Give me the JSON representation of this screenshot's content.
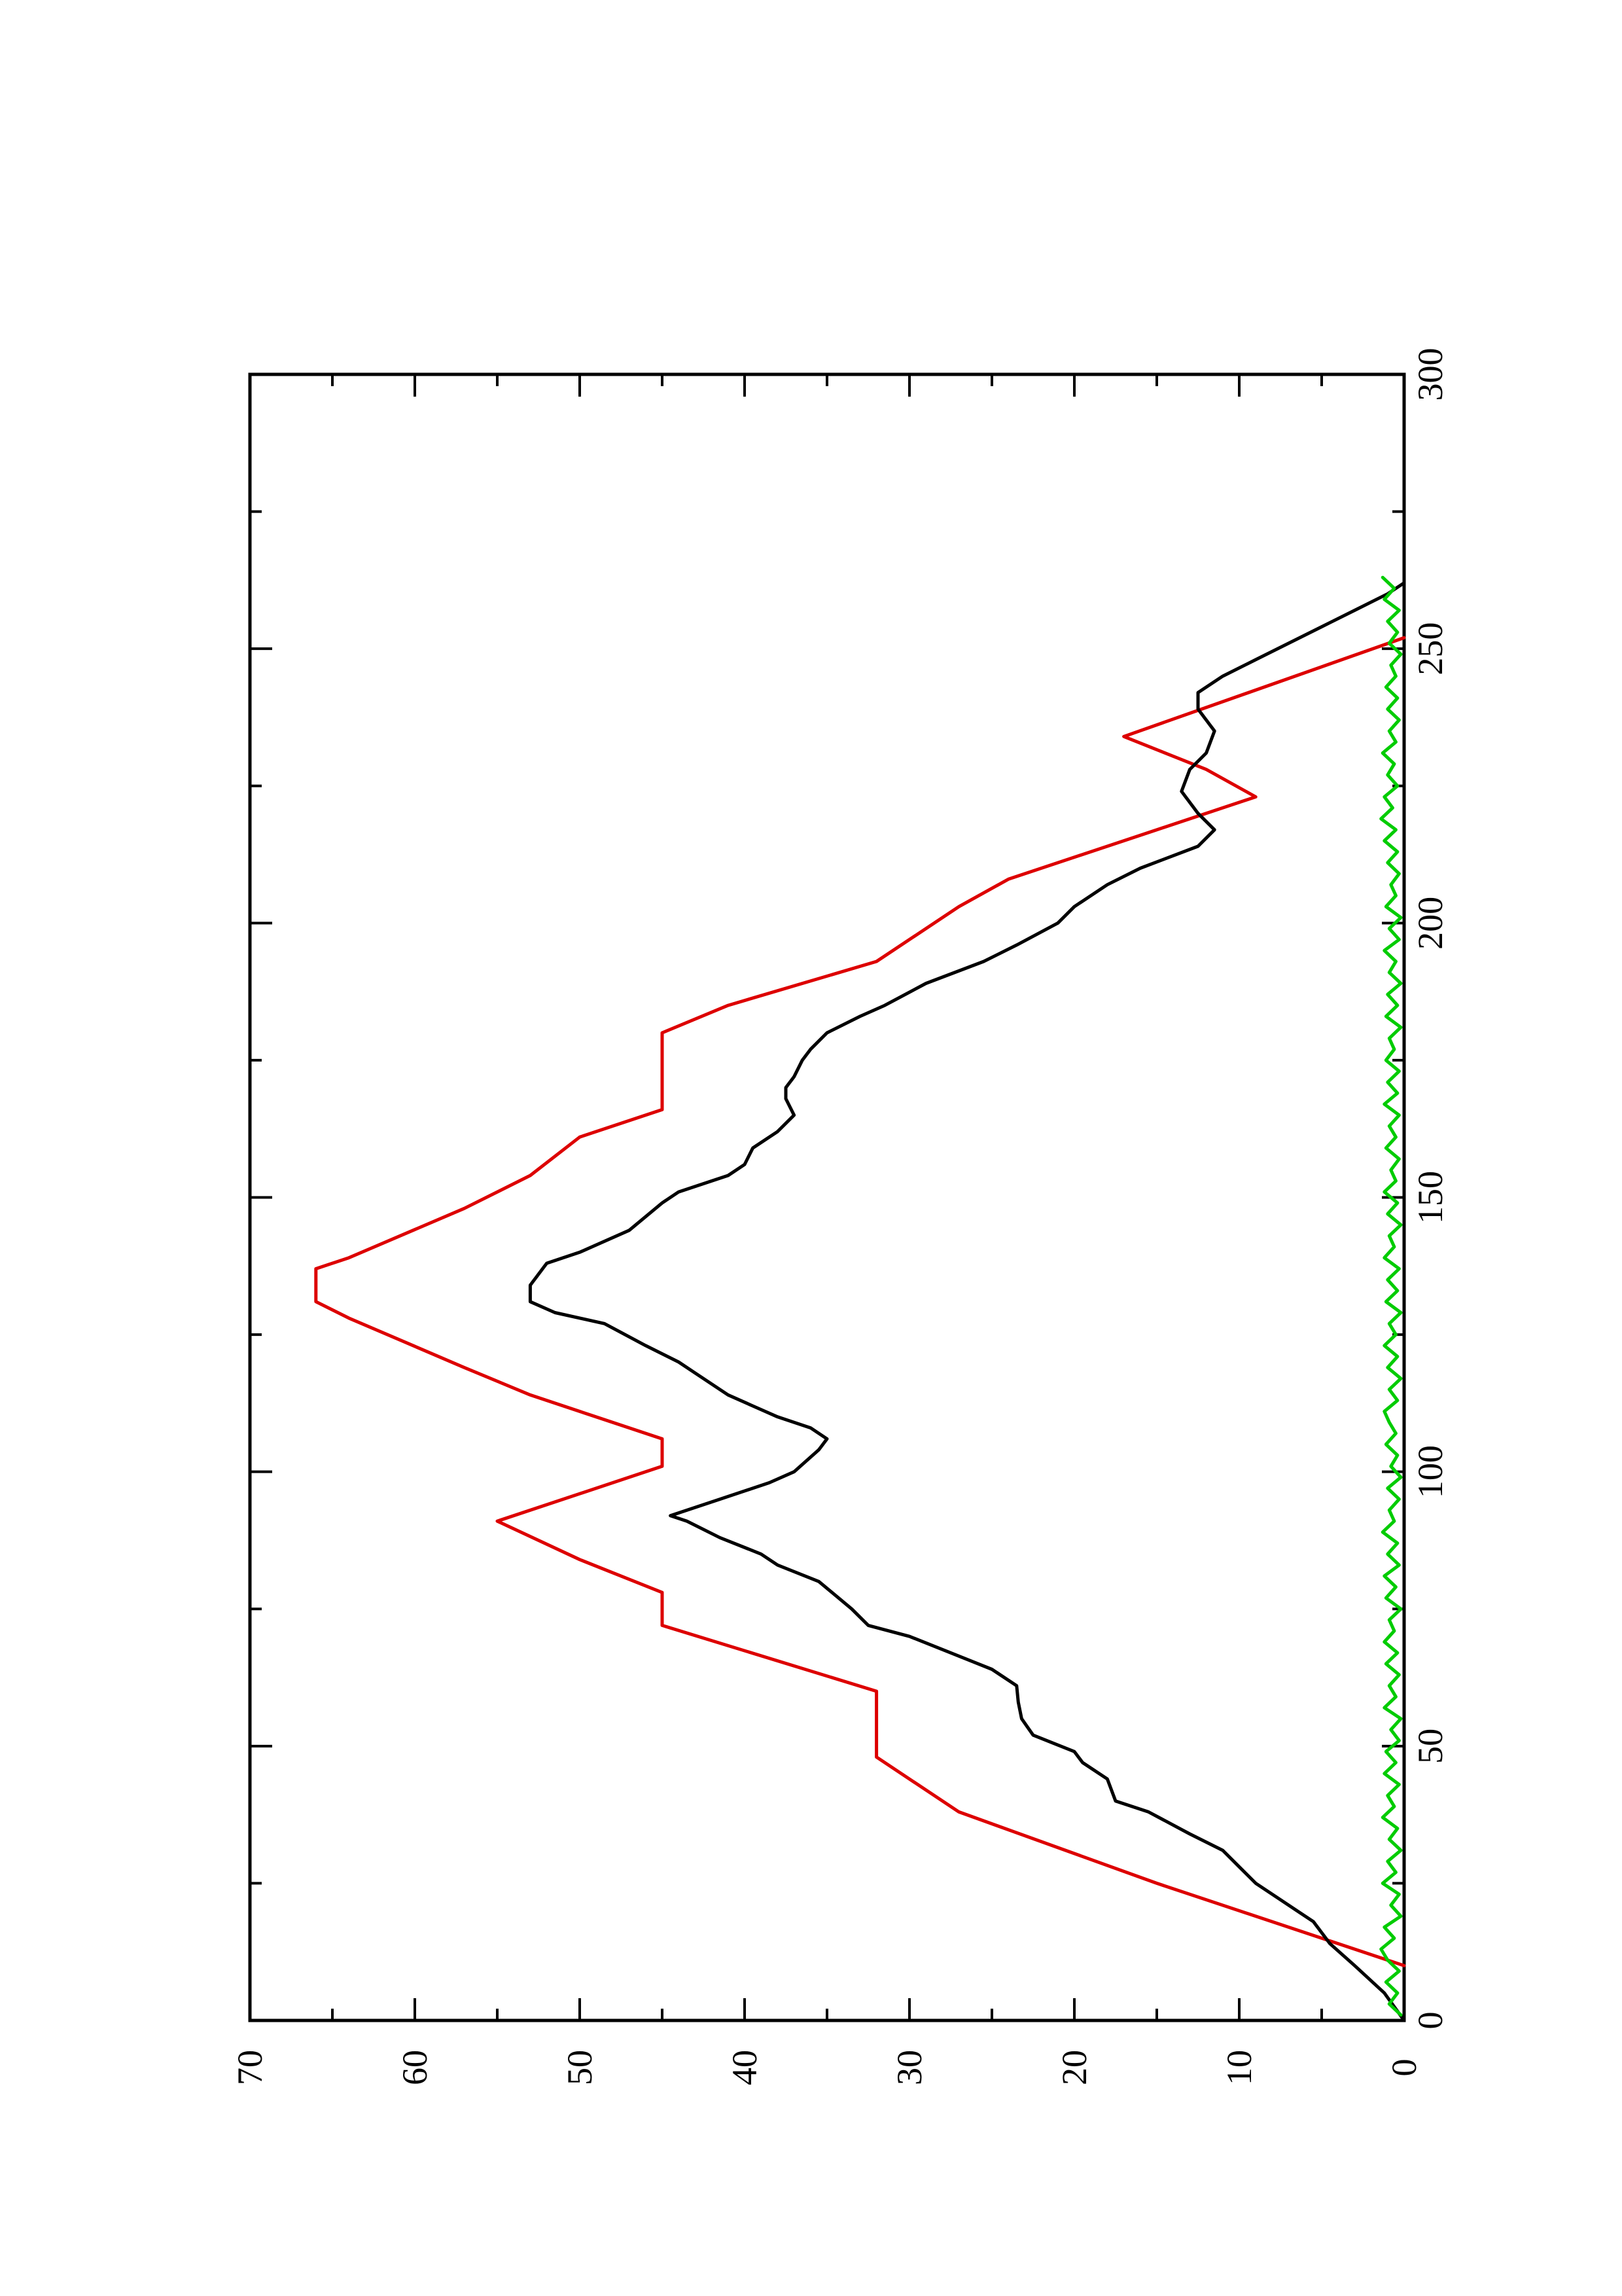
{
  "chart_data": {
    "type": "line",
    "orientation": "rotated-90-ccw",
    "title": "",
    "xlabel": "",
    "ylabel": "",
    "xlim": [
      0,
      300
    ],
    "ylim": [
      0,
      70
    ],
    "x_ticks": [
      "0",
      "50",
      "100",
      "150",
      "200",
      "250",
      "300"
    ],
    "y_ticks": [
      "0",
      "10",
      "20",
      "30",
      "40",
      "50",
      "60",
      "70"
    ],
    "grid": false,
    "legend": "none",
    "series": [
      {
        "color": "#dd0000",
        "points": [
          [
            10,
            0
          ],
          [
            25,
            15
          ],
          [
            38,
            27
          ],
          [
            48,
            32
          ],
          [
            60,
            32
          ],
          [
            72,
            45
          ],
          [
            78,
            45
          ],
          [
            84,
            50
          ],
          [
            91,
            55
          ],
          [
            101,
            45
          ],
          [
            106,
            45
          ],
          [
            114,
            53
          ],
          [
            119,
            57
          ],
          [
            128,
            64
          ],
          [
            131,
            66
          ],
          [
            137,
            66
          ],
          [
            139,
            64
          ],
          [
            148,
            57
          ],
          [
            154,
            53
          ],
          [
            161,
            50
          ],
          [
            166,
            45
          ],
          [
            180,
            45
          ],
          [
            185,
            41
          ],
          [
            193,
            32
          ],
          [
            203,
            27
          ],
          [
            208,
            24
          ],
          [
            223,
            9
          ],
          [
            228,
            12
          ],
          [
            234,
            17
          ],
          [
            252,
            0
          ]
        ]
      },
      {
        "color": "#000000",
        "points": [
          [
            0,
            0
          ],
          [
            5,
            1.2
          ],
          [
            10,
            3
          ],
          [
            14,
            4.5
          ],
          [
            18,
            5.5
          ],
          [
            22,
            7.5
          ],
          [
            25,
            9
          ],
          [
            28,
            10
          ],
          [
            31,
            11
          ],
          [
            34,
            13
          ],
          [
            38,
            15.5
          ],
          [
            40,
            17.5
          ],
          [
            44,
            18
          ],
          [
            47,
            19.5
          ],
          [
            49,
            20
          ],
          [
            52,
            22.5
          ],
          [
            55,
            23.2
          ],
          [
            58,
            23.4
          ],
          [
            61,
            23.5
          ],
          [
            64,
            25
          ],
          [
            67,
            27.5
          ],
          [
            70,
            30
          ],
          [
            72,
            32.5
          ],
          [
            75,
            33.5
          ],
          [
            80,
            35.5
          ],
          [
            83,
            38
          ],
          [
            85,
            39
          ],
          [
            88,
            41.5
          ],
          [
            91,
            43.5
          ],
          [
            92,
            44.5
          ],
          [
            95,
            41.5
          ],
          [
            98,
            38.5
          ],
          [
            100,
            37
          ],
          [
            104,
            35.5
          ],
          [
            106,
            35
          ],
          [
            108,
            36
          ],
          [
            110,
            38
          ],
          [
            112,
            39.5
          ],
          [
            114,
            41
          ],
          [
            118,
            43
          ],
          [
            120,
            44
          ],
          [
            123,
            46
          ],
          [
            127,
            48.5
          ],
          [
            129,
            51.5
          ],
          [
            131,
            53
          ],
          [
            134,
            53
          ],
          [
            136,
            52.5
          ],
          [
            138,
            52
          ],
          [
            140,
            50
          ],
          [
            144,
            47
          ],
          [
            149,
            45
          ],
          [
            151,
            44
          ],
          [
            154,
            41
          ],
          [
            156,
            40
          ],
          [
            159,
            39.5
          ],
          [
            162,
            38
          ],
          [
            165,
            37
          ],
          [
            168,
            37.5
          ],
          [
            170,
            37.5
          ],
          [
            172,
            37
          ],
          [
            175,
            36.5
          ],
          [
            177,
            36
          ],
          [
            180,
            35
          ],
          [
            183,
            33
          ],
          [
            185,
            31.5
          ],
          [
            189,
            29
          ],
          [
            193,
            25.5
          ],
          [
            196,
            23.5
          ],
          [
            200,
            21
          ],
          [
            203,
            20
          ],
          [
            207,
            18
          ],
          [
            210,
            16
          ],
          [
            214,
            12.5
          ],
          [
            217,
            11.5
          ],
          [
            220,
            12.5
          ],
          [
            224,
            13.5
          ],
          [
            228,
            13
          ],
          [
            231,
            12
          ],
          [
            235,
            11.5
          ],
          [
            239,
            12.5
          ],
          [
            242,
            12.5
          ],
          [
            245,
            11
          ],
          [
            248,
            9
          ],
          [
            251,
            7
          ],
          [
            254,
            5
          ],
          [
            257,
            3
          ],
          [
            260,
            1
          ],
          [
            262,
            0
          ]
        ]
      },
      {
        "color": "#00cc00",
        "points": [
          [
            1,
            0.2
          ],
          [
            3,
            0.9
          ],
          [
            5,
            0.4
          ],
          [
            7,
            1.1
          ],
          [
            9,
            0.3
          ],
          [
            11,
            1.0
          ],
          [
            13,
            1.4
          ],
          [
            15,
            0.6
          ],
          [
            17,
            1.2
          ],
          [
            19,
            0.2
          ],
          [
            21,
            0.8
          ],
          [
            23,
            0.3
          ],
          [
            25,
            1.3
          ],
          [
            27,
            0.5
          ],
          [
            29,
            1.0
          ],
          [
            31,
            0.2
          ],
          [
            33,
            0.9
          ],
          [
            35,
            0.4
          ],
          [
            37,
            1.3
          ],
          [
            39,
            0.6
          ],
          [
            41,
            1.0
          ],
          [
            43,
            0.3
          ],
          [
            45,
            1.2
          ],
          [
            47,
            0.5
          ],
          [
            49,
            1.1
          ],
          [
            51,
            0.3
          ],
          [
            53,
            0.8
          ],
          [
            55,
            0.2
          ],
          [
            57,
            1.2
          ],
          [
            59,
            0.5
          ],
          [
            61,
            0.9
          ],
          [
            63,
            0.3
          ],
          [
            65,
            1.1
          ],
          [
            67,
            0.4
          ],
          [
            69,
            1.2
          ],
          [
            71,
            0.6
          ],
          [
            73,
            0.9
          ],
          [
            75,
            0.2
          ],
          [
            77,
            1.1
          ],
          [
            79,
            0.5
          ],
          [
            81,
            1.2
          ],
          [
            83,
            0.3
          ],
          [
            85,
            1.0
          ],
          [
            87,
            0.4
          ],
          [
            89,
            1.3
          ],
          [
            91,
            0.6
          ],
          [
            93,
            0.9
          ],
          [
            95,
            0.3
          ],
          [
            97,
            1.0
          ],
          [
            99,
            0.2
          ],
          [
            101,
            0.8
          ],
          [
            103,
            0.4
          ],
          [
            105,
            1.1
          ],
          [
            107,
            0.5
          ],
          [
            109,
            0.9
          ],
          [
            111,
            1.2
          ],
          [
            113,
            0.4
          ],
          [
            115,
            0.9
          ],
          [
            117,
            0.2
          ],
          [
            119,
            1.0
          ],
          [
            121,
            0.4
          ],
          [
            123,
            1.2
          ],
          [
            125,
            0.5
          ],
          [
            127,
            0.9
          ],
          [
            129,
            0.2
          ],
          [
            131,
            1.1
          ],
          [
            133,
            0.4
          ],
          [
            135,
            1.0
          ],
          [
            137,
            0.3
          ],
          [
            139,
            1.2
          ],
          [
            141,
            0.6
          ],
          [
            143,
            0.9
          ],
          [
            145,
            0.2
          ],
          [
            147,
            1.0
          ],
          [
            149,
            0.4
          ],
          [
            151,
            1.2
          ],
          [
            153,
            0.5
          ],
          [
            155,
            0.8
          ],
          [
            157,
            0.3
          ],
          [
            159,
            1.1
          ],
          [
            161,
            0.5
          ],
          [
            163,
            0.9
          ],
          [
            165,
            0.3
          ],
          [
            167,
            1.2
          ],
          [
            169,
            0.4
          ],
          [
            171,
            1.0
          ],
          [
            173,
            0.3
          ],
          [
            175,
            1.1
          ],
          [
            177,
            0.6
          ],
          [
            179,
            0.9
          ],
          [
            181,
            0.2
          ],
          [
            183,
            1.1
          ],
          [
            185,
            0.4
          ],
          [
            187,
            1.0
          ],
          [
            189,
            0.2
          ],
          [
            191,
            0.9
          ],
          [
            193,
            0.5
          ],
          [
            195,
            1.2
          ],
          [
            197,
            0.3
          ],
          [
            199,
            0.9
          ],
          [
            201,
            0.2
          ],
          [
            203,
            1.1
          ],
          [
            205,
            0.5
          ],
          [
            207,
            0.8
          ],
          [
            209,
            0.3
          ],
          [
            211,
            1.0
          ],
          [
            213,
            0.4
          ],
          [
            215,
            1.2
          ],
          [
            217,
            0.5
          ],
          [
            219,
            1.4
          ],
          [
            221,
            0.7
          ],
          [
            223,
            1.2
          ],
          [
            225,
            0.4
          ],
          [
            227,
            1.0
          ],
          [
            229,
            0.6
          ],
          [
            231,
            1.3
          ],
          [
            233,
            0.5
          ],
          [
            235,
            0.9
          ],
          [
            237,
            0.3
          ],
          [
            239,
            1.0
          ],
          [
            241,
            0.4
          ],
          [
            243,
            1.1
          ],
          [
            245,
            0.5
          ],
          [
            247,
            0.8
          ],
          [
            249,
            0.2
          ],
          [
            251,
            0.9
          ],
          [
            253,
            0.4
          ],
          [
            255,
            1.0
          ],
          [
            257,
            0.3
          ],
          [
            259,
            1.2
          ],
          [
            261,
            0.6
          ],
          [
            263,
            1.3
          ]
        ]
      }
    ]
  }
}
